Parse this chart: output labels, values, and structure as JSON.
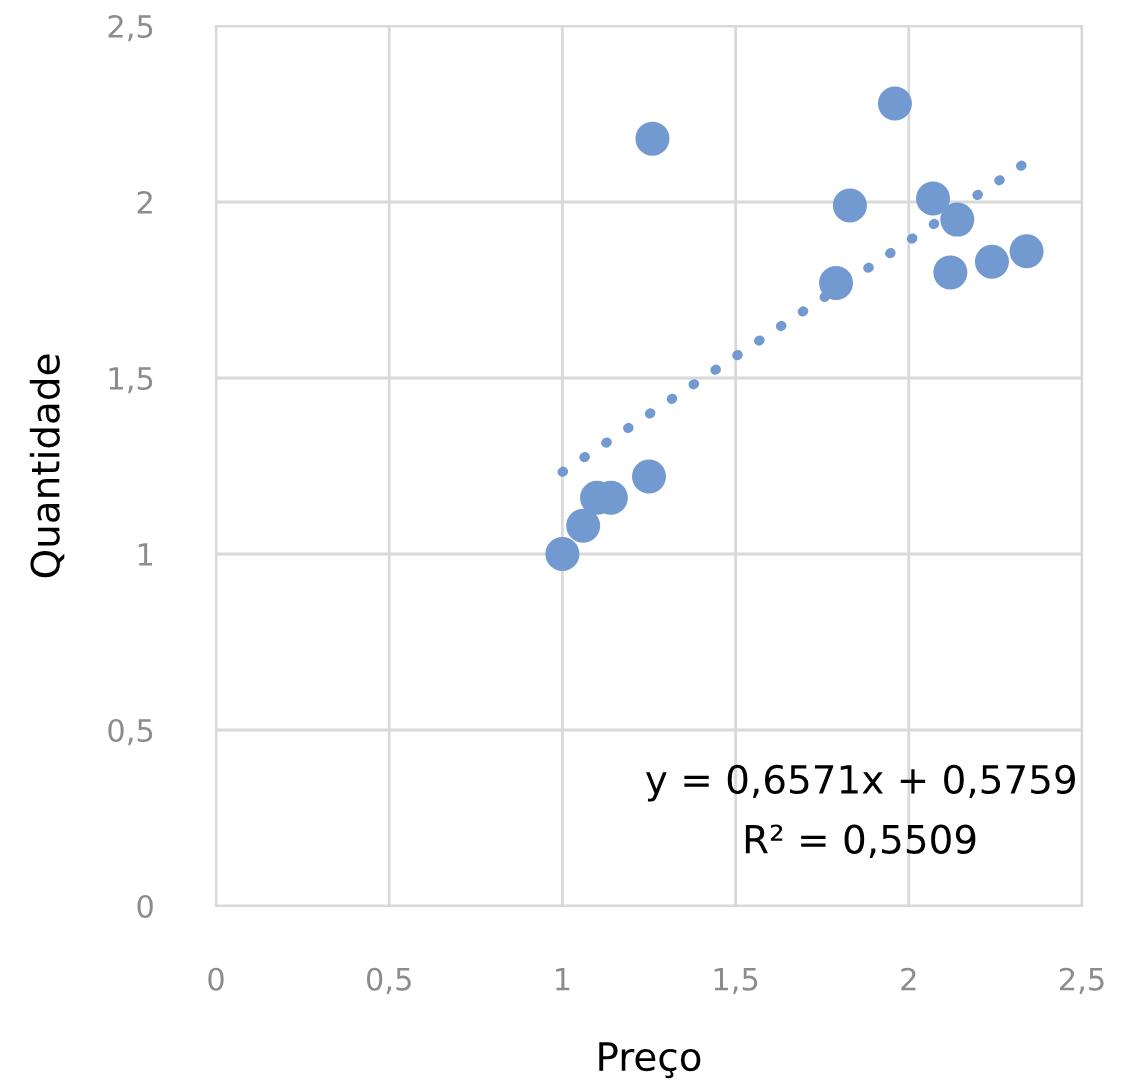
{
  "chart_data": {
    "type": "scatter",
    "xlabel": "Preço",
    "ylabel": "Quantidade",
    "xlim": [
      0,
      2.5
    ],
    "ylim": [
      0,
      2.5
    ],
    "xticks": [
      {
        "value": 0,
        "label": "0"
      },
      {
        "value": 0.5,
        "label": "0,5"
      },
      {
        "value": 1,
        "label": "1"
      },
      {
        "value": 1.5,
        "label": "1,5"
      },
      {
        "value": 2,
        "label": "2"
      },
      {
        "value": 2.5,
        "label": "2,5"
      }
    ],
    "yticks": [
      {
        "value": 0,
        "label": "0"
      },
      {
        "value": 0.5,
        "label": "0,5"
      },
      {
        "value": 1,
        "label": "1"
      },
      {
        "value": 1.5,
        "label": "1,5"
      },
      {
        "value": 2,
        "label": "2"
      },
      {
        "value": 2.5,
        "label": "2,5"
      }
    ],
    "grid": true,
    "series": [
      {
        "marker": "circle",
        "color": "#7299d0",
        "x": [
          1.26,
          1.96,
          1.83,
          2.07,
          2.14,
          1.79,
          2.12,
          2.24,
          2.34,
          1.25,
          1.14,
          1.1,
          1.06,
          1.0
        ],
        "values": [
          2.18,
          2.28,
          1.99,
          2.01,
          1.95,
          1.77,
          1.8,
          1.83,
          1.86,
          1.22,
          1.16,
          1.16,
          1.08,
          1.0
        ]
      },
      {
        "type": "line",
        "color": "#7299d0",
        "line_style": "dotted",
        "x": [
          1.0,
          2.34
        ],
        "values": [
          1.233,
          2.113
        ]
      }
    ],
    "annotations": [
      "y = 0,6571x + 0,5759",
      "R² = 0,5509"
    ]
  }
}
